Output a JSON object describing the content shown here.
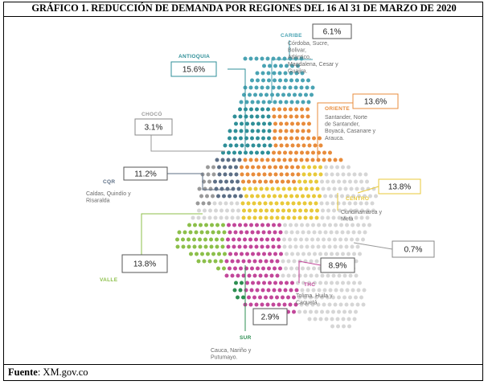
{
  "title": "GRÁFICO 1. REDUCCIÓN DE DEMANDA POR REGIONES DEL 16 Al 31 DE MARZO DE 2020",
  "footer": {
    "label": "Fuente",
    "text": ": XM.gov.co"
  },
  "colors": {
    "Caribe": "#4aa3b3",
    "Antioquia": "#2f8f98",
    "Chocó": "#9a9a9a",
    "Oriente": "#e88c3c",
    "Centro": "#e8c93a",
    "CQR": "#5d6f86",
    "Valle": "#8cbf4a",
    "THC": "#c2479a",
    "Sur": "#2e8f52",
    "Otros": "#d6d6d6"
  },
  "chart_data": {
    "type": "map",
    "title": "GRÁFICO 1. REDUCCIÓN DE DEMANDA POR REGIONES DEL 16 Al 31 DE MARZO DE 2020",
    "unit": "%",
    "regions": [
      {
        "name": "CARIBE",
        "value": 6.1,
        "label": "6.1%",
        "description": "Córdoba, Sucre, Bolivar, Atlántico, Magdalena, Cesar y Guajira."
      },
      {
        "name": "ANTIOQUIA",
        "value": 15.6,
        "label": "15.6%",
        "description": ""
      },
      {
        "name": "CHOCÓ",
        "value": 3.1,
        "label": "3.1%",
        "description": ""
      },
      {
        "name": "ORIENTE",
        "value": 13.6,
        "label": "13.6%",
        "description": "Santander, Norte de Santander, Boyacá, Casanare y Arauca."
      },
      {
        "name": "CENTRO",
        "value": 13.8,
        "label": "13.8%",
        "description": "Cundinamarca y Meta"
      },
      {
        "name": "CQR",
        "value": 11.2,
        "label": "11.2%",
        "description": "Caldas, Quindío y Risaralda"
      },
      {
        "name": "",
        "value": 0.7,
        "label": "0.7%",
        "description": ""
      },
      {
        "name": "VALLE",
        "value": 13.8,
        "label": "13.8%",
        "description": ""
      },
      {
        "name": "THC",
        "value": 8.9,
        "label": "8.9%",
        "description": "Tolima, Huila y Caquetá"
      },
      {
        "name": "SUR",
        "value": 2.9,
        "label": "2.9%",
        "description": "Cauca, Nariño y Putumayo."
      }
    ]
  }
}
